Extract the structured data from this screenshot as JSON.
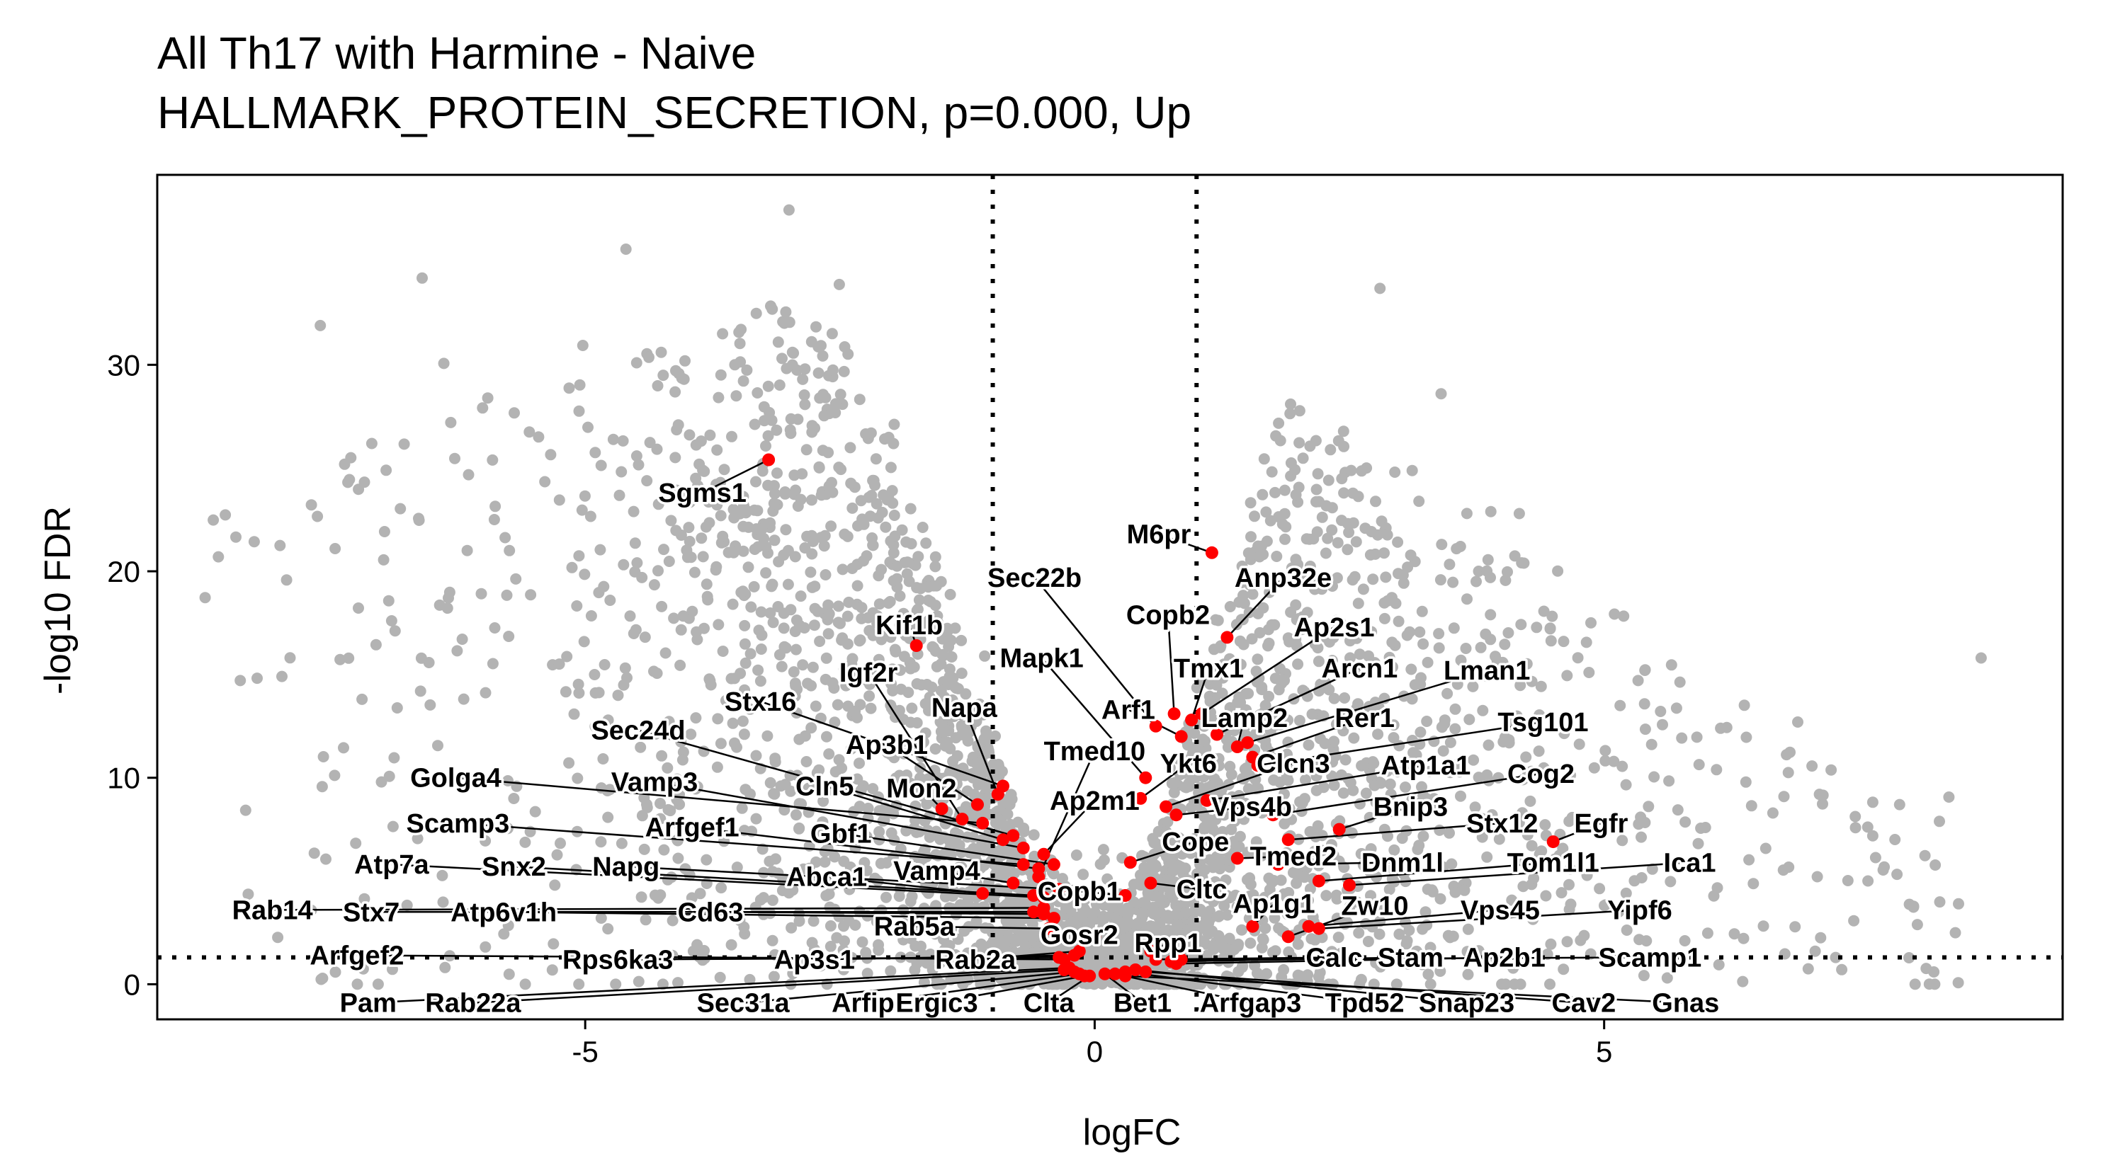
{
  "chart_data": {
    "type": "scatter",
    "title": "All Th17 with Harmine - Naive",
    "subtitle": "HALLMARK_PROTEIN_SECRETION, p=0.000, Up",
    "xlabel": "logFC",
    "ylabel": "-log10 FDR",
    "xlim": [
      -9.2,
      9.5
    ],
    "ylim": [
      -1.7,
      39.2
    ],
    "xticks": [
      -5,
      0,
      5
    ],
    "yticks": [
      0,
      10,
      20,
      30
    ],
    "grid": false,
    "legend": "none",
    "thresholds": {
      "logFC": [
        -1,
        1
      ],
      "neg_log10_fdr": 1.3
    },
    "colors": {
      "background_genes": "#b3b3b3",
      "pathway_genes": "#ff0000",
      "threshold_lines": "#000000",
      "label_lines": "#000000"
    },
    "background": {
      "description_hidden": "",
      "left_cloud": {
        "count": 1500,
        "x_range": [
          -8.8,
          -0.2
        ],
        "y_peak": 37.5
      },
      "right_cloud": {
        "count": 1300,
        "x_range": [
          0.2,
          8.8
        ],
        "y_peak": 28.7
      },
      "center_cloud": {
        "count": 500,
        "x_range": [
          -1.2,
          1.2
        ],
        "y_range": [
          0,
          6
        ]
      }
    },
    "series": [
      {
        "points": [
          {
            "label": "Sgms1",
            "x": -3.2,
            "y": 25.4,
            "label_x": -3.85,
            "label_y": 23.8
          },
          {
            "label": "M6pr",
            "x": 1.15,
            "y": 20.9,
            "label_x": 0.63,
            "label_y": 21.8
          },
          {
            "label": "Anp32e",
            "x": 1.3,
            "y": 16.8,
            "label_x": 1.85,
            "label_y": 19.7
          },
          {
            "label": "Kif1b",
            "x": -1.75,
            "y": 16.4,
            "label_x": -1.82,
            "label_y": 17.4
          },
          {
            "label": "Sec22b",
            "x": 0.6,
            "y": 12.5,
            "label_x": -0.59,
            "label_y": 19.7
          },
          {
            "label": "Copb2",
            "x": 0.78,
            "y": 13.1,
            "label_x": 0.72,
            "label_y": 17.9
          },
          {
            "label": "Ap2s1",
            "x": 1.05,
            "y": 13.1,
            "label_x": 2.35,
            "label_y": 17.3
          },
          {
            "label": "Mapk1",
            "x": 0.5,
            "y": 10.0,
            "label_x": -0.52,
            "label_y": 15.8
          },
          {
            "label": "Tmx1",
            "x": 0.95,
            "y": 12.8,
            "label_x": 1.12,
            "label_y": 15.3
          },
          {
            "label": "Arcn1",
            "x": 1.2,
            "y": 12.1,
            "label_x": 2.6,
            "label_y": 15.3
          },
          {
            "label": "Lman1",
            "x": 1.5,
            "y": 11.7,
            "label_x": 3.85,
            "label_y": 15.2
          },
          {
            "label": "Igf2r",
            "x": -1.3,
            "y": 8.0,
            "label_x": -2.22,
            "label_y": 15.1
          },
          {
            "label": "Arf1",
            "x": 0.85,
            "y": 12.0,
            "label_x": 0.33,
            "label_y": 13.3
          },
          {
            "label": "Lamp2",
            "x": 1.4,
            "y": 11.5,
            "label_x": 1.47,
            "label_y": 12.9
          },
          {
            "label": "Rer1",
            "x": 1.55,
            "y": 11.0,
            "label_x": 2.65,
            "label_y": 12.9
          },
          {
            "label": "Tsg101",
            "x": 1.6,
            "y": 10.6,
            "label_x": 4.4,
            "label_y": 12.7
          },
          {
            "label": "Stx16",
            "x": -0.9,
            "y": 9.6,
            "label_x": -3.28,
            "label_y": 13.7
          },
          {
            "label": "Napa",
            "x": -0.95,
            "y": 9.2,
            "label_x": -1.28,
            "label_y": 13.4
          },
          {
            "label": "Sec24d",
            "x": -0.8,
            "y": 7.2,
            "label_x": -4.48,
            "label_y": 12.3
          },
          {
            "label": "Ap3b1",
            "x": -1.15,
            "y": 8.7,
            "label_x": -2.04,
            "label_y": 11.6
          },
          {
            "label": "Tmed10",
            "x": -0.55,
            "y": 5.2,
            "label_x": 0.0,
            "label_y": 11.3
          },
          {
            "label": "Ykt6",
            "x": 0.45,
            "y": 9.0,
            "label_x": 0.92,
            "label_y": 10.7
          },
          {
            "label": "Clcn3",
            "x": 0.7,
            "y": 8.6,
            "label_x": 1.95,
            "label_y": 10.7
          },
          {
            "label": "Atp1a1",
            "x": 1.1,
            "y": 8.9,
            "label_x": 3.25,
            "label_y": 10.6
          },
          {
            "label": "Golga4",
            "x": -1.1,
            "y": 7.8,
            "label_x": -6.27,
            "label_y": 10.0
          },
          {
            "label": "Vamp3",
            "x": -0.7,
            "y": 6.6,
            "label_x": -4.32,
            "label_y": 9.8
          },
          {
            "label": "Cln5",
            "x": -0.9,
            "y": 7.0,
            "label_x": -2.65,
            "label_y": 9.6
          },
          {
            "label": "Cog2",
            "x": 1.75,
            "y": 8.2,
            "label_x": 4.38,
            "label_y": 10.2
          },
          {
            "label": "Mon2",
            "x": -1.5,
            "y": 8.5,
            "label_x": -1.7,
            "label_y": 9.5
          },
          {
            "label": "Ap2m1",
            "x": -0.5,
            "y": 6.3,
            "label_x": 0.0,
            "label_y": 8.9
          },
          {
            "label": "Vps4b",
            "x": 0.8,
            "y": 8.2,
            "label_x": 1.54,
            "label_y": 8.6
          },
          {
            "label": "Bnip3",
            "x": 2.4,
            "y": 7.5,
            "label_x": 3.1,
            "label_y": 8.6
          },
          {
            "label": "Stx12",
            "x": 1.9,
            "y": 7.0,
            "label_x": 4.0,
            "label_y": 7.8
          },
          {
            "label": "Egfr",
            "x": 4.5,
            "y": 6.9,
            "label_x": 4.97,
            "label_y": 7.8
          },
          {
            "label": "Scamp3",
            "x": -0.7,
            "y": 5.8,
            "label_x": -6.25,
            "label_y": 7.8
          },
          {
            "label": "Arfgef1",
            "x": -0.55,
            "y": 5.6,
            "label_x": -3.95,
            "label_y": 7.6
          },
          {
            "label": "Gbf1",
            "x": -0.4,
            "y": 5.8,
            "label_x": -2.49,
            "label_y": 7.3
          },
          {
            "label": "Cope",
            "x": 0.35,
            "y": 5.9,
            "label_x": 0.99,
            "label_y": 6.9
          },
          {
            "label": "Tmed2",
            "x": 1.4,
            "y": 6.1,
            "label_x": 1.95,
            "label_y": 6.2
          },
          {
            "label": "Dnm1l",
            "x": 1.8,
            "y": 5.8,
            "label_x": 3.02,
            "label_y": 5.9
          },
          {
            "label": "Tom1l1",
            "x": 2.2,
            "y": 5.0,
            "label_x": 4.5,
            "label_y": 5.9
          },
          {
            "label": "Ica1",
            "x": 2.5,
            "y": 4.8,
            "label_x": 5.84,
            "label_y": 5.9
          },
          {
            "label": "Atp7a",
            "x": -0.5,
            "y": 4.2,
            "label_x": -6.9,
            "label_y": 5.8
          },
          {
            "label": "Snx2",
            "x": -0.6,
            "y": 4.3,
            "label_x": -5.7,
            "label_y": 5.7
          },
          {
            "label": "Napg",
            "x": -0.35,
            "y": 4.6,
            "label_x": -4.6,
            "label_y": 5.7
          },
          {
            "label": "Abca1",
            "x": -1.1,
            "y": 4.4,
            "label_x": -2.63,
            "label_y": 5.2
          },
          {
            "label": "Vamp4",
            "x": -0.8,
            "y": 4.9,
            "label_x": -1.55,
            "label_y": 5.5
          },
          {
            "label": "Copb1",
            "x": 0.3,
            "y": 4.3,
            "label_x": -0.15,
            "label_y": 4.5
          },
          {
            "label": "Cltc",
            "x": 0.55,
            "y": 4.9,
            "label_x": 1.05,
            "label_y": 4.6
          },
          {
            "label": "Ap1g1",
            "x": 1.55,
            "y": 2.8,
            "label_x": 1.76,
            "label_y": 3.9
          },
          {
            "label": "Zw10",
            "x": 1.9,
            "y": 2.3,
            "label_x": 2.75,
            "label_y": 3.8
          },
          {
            "label": "Vps45",
            "x": 2.1,
            "y": 2.8,
            "label_x": 3.98,
            "label_y": 3.6
          },
          {
            "label": "Yipf6",
            "x": 2.2,
            "y": 2.7,
            "label_x": 5.35,
            "label_y": 3.6
          },
          {
            "label": "Rab14",
            "x": -0.5,
            "y": 3.7,
            "label_x": -8.07,
            "label_y": 3.6
          },
          {
            "label": "Stx7",
            "x": -0.6,
            "y": 3.5,
            "label_x": -7.1,
            "label_y": 3.5
          },
          {
            "label": "Atp6v1h",
            "x": -0.4,
            "y": 3.2,
            "label_x": -5.8,
            "label_y": 3.5
          },
          {
            "label": "Cd63",
            "x": -0.5,
            "y": 3.4,
            "label_x": -3.77,
            "label_y": 3.5
          },
          {
            "label": "Rab5a",
            "x": -0.45,
            "y": 2.7,
            "label_x": -1.77,
            "label_y": 2.8
          },
          {
            "label": "Gosr2",
            "x": 0.0,
            "y": 2.3,
            "label_x": -0.15,
            "label_y": 2.4
          },
          {
            "label": "Rpp1",
            "x": 0.55,
            "y": 1.6,
            "label_x": 0.72,
            "label_y": 2.0
          },
          {
            "label": "Arfgef2",
            "x": -0.3,
            "y": 1.2,
            "label_x": -7.24,
            "label_y": 1.4
          },
          {
            "label": "Rps6ka3",
            "x": -0.35,
            "y": 1.3,
            "label_x": -4.68,
            "label_y": 1.2
          },
          {
            "label": "Ap3s1",
            "x": -0.2,
            "y": 1.4,
            "label_x": -2.75,
            "label_y": 1.2
          },
          {
            "label": "Rab2a",
            "x": -0.15,
            "y": 1.6,
            "label_x": -1.17,
            "label_y": 1.2
          },
          {
            "label": "Calc",
            "x": 0.6,
            "y": 1.2,
            "label_x": 2.35,
            "label_y": 1.3
          },
          {
            "label": "Stam",
            "x": 0.75,
            "y": 1.1,
            "label_x": 3.1,
            "label_y": 1.3
          },
          {
            "label": "Ap2b1",
            "x": 0.8,
            "y": 1.0,
            "label_x": 4.02,
            "label_y": 1.3
          },
          {
            "label": "Scamp1",
            "x": 0.85,
            "y": 1.2,
            "label_x": 5.45,
            "label_y": 1.3
          },
          {
            "label": "Pam",
            "x": -0.25,
            "y": 0.8,
            "label_x": -7.13,
            "label_y": -0.9
          },
          {
            "label": "Rab22a",
            "x": -0.3,
            "y": 0.7,
            "label_x": -6.1,
            "label_y": -0.9
          },
          {
            "label": "Sec31a",
            "x": -0.2,
            "y": 0.6,
            "label_x": -3.45,
            "label_y": -0.9
          },
          {
            "label": "Arfip1",
            "x": -0.15,
            "y": 0.5,
            "label_x": -2.2,
            "label_y": -0.9
          },
          {
            "label": "Ergic3",
            "x": -0.1,
            "y": 0.4,
            "label_x": -1.55,
            "label_y": -0.9
          },
          {
            "label": "Clta",
            "x": -0.05,
            "y": 0.4,
            "label_x": -0.45,
            "label_y": -0.9
          },
          {
            "label": "Bet1",
            "x": 0.1,
            "y": 0.5,
            "label_x": 0.47,
            "label_y": -0.9
          },
          {
            "label": "Arfgap3",
            "x": 0.2,
            "y": 0.5,
            "label_x": 1.53,
            "label_y": -0.9
          },
          {
            "label": "Tpd52",
            "x": 0.3,
            "y": 0.6,
            "label_x": 2.65,
            "label_y": -0.9
          },
          {
            "label": "Snap23",
            "x": 0.4,
            "y": 0.7,
            "label_x": 3.65,
            "label_y": -0.9
          },
          {
            "label": "Cav2",
            "x": 0.5,
            "y": 0.6,
            "label_x": 4.8,
            "label_y": -0.9
          },
          {
            "label": "Gnas",
            "x": 0.3,
            "y": 0.4,
            "label_x": 5.8,
            "label_y": -0.9
          }
        ]
      }
    ]
  }
}
